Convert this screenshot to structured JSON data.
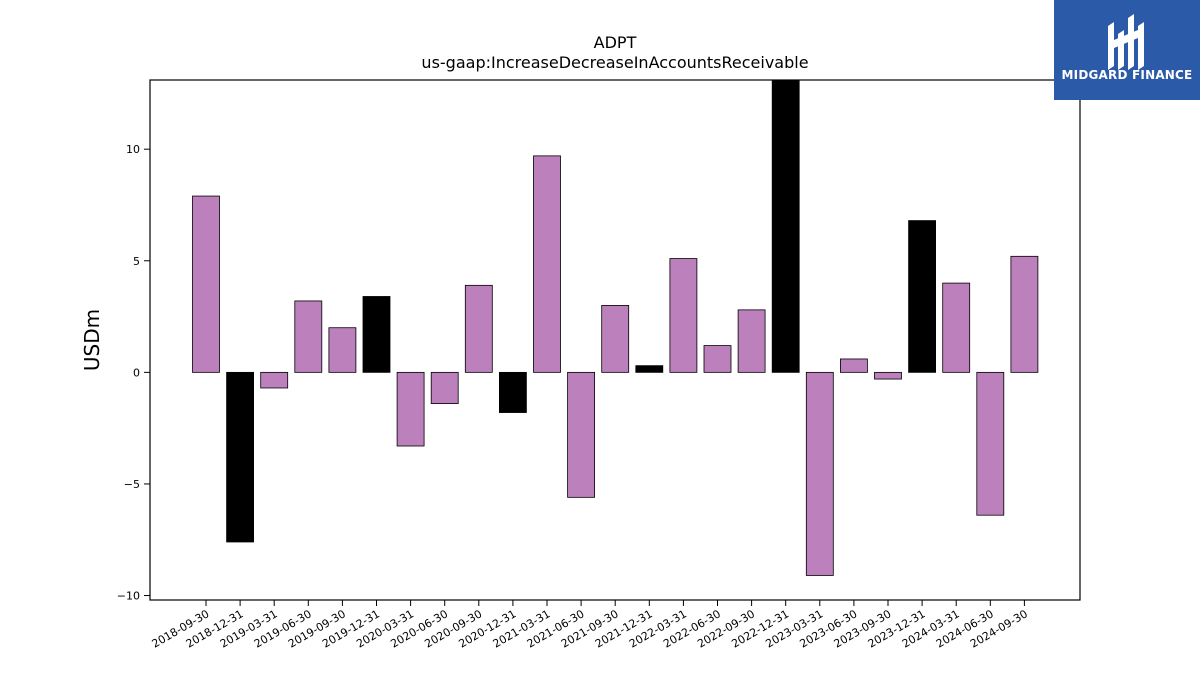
{
  "brand": {
    "name": "MIDGARD FINANCE",
    "bg_color": "#2b5aa8",
    "text_color": "#ffffff"
  },
  "chart_data": {
    "type": "bar",
    "title": "ADPT",
    "subtitle": "us-gaap:IncreaseDecreaseInAccountsReceivable",
    "xlabel": "",
    "ylabel": "USDm",
    "ylim": [
      -10.2,
      13.1
    ],
    "yticks": [
      -10,
      -5,
      0,
      5,
      10
    ],
    "ytick_labels": [
      "−10",
      "−5",
      "0",
      "5",
      "10"
    ],
    "grid": false,
    "categories": [
      "2018-09-30",
      "2018-12-31",
      "2019-03-31",
      "2019-06-30",
      "2019-09-30",
      "2019-12-31",
      "2020-03-31",
      "2020-06-30",
      "2020-09-30",
      "2020-12-31",
      "2021-03-31",
      "2021-06-30",
      "2021-09-30",
      "2021-12-31",
      "2022-03-31",
      "2022-06-30",
      "2022-09-30",
      "2022-12-31",
      "2023-03-31",
      "2023-06-30",
      "2023-09-30",
      "2023-12-31",
      "2024-03-31",
      "2024-06-30",
      "2024-09-30"
    ],
    "values": [
      7.9,
      -7.6,
      -0.7,
      3.2,
      2.0,
      3.4,
      -3.3,
      -1.4,
      3.9,
      -1.8,
      9.7,
      -5.6,
      3.0,
      0.3,
      5.1,
      1.2,
      2.8,
      13.2,
      -9.1,
      0.6,
      -0.3,
      6.8,
      4.0,
      -6.4,
      5.2
    ],
    "highlight": [
      false,
      true,
      false,
      false,
      false,
      true,
      false,
      false,
      false,
      true,
      false,
      false,
      false,
      true,
      false,
      false,
      false,
      true,
      false,
      false,
      false,
      true,
      false,
      false,
      false
    ],
    "colors": {
      "default": "#bc80bd",
      "highlight": "#000000",
      "edge": "#000000"
    }
  }
}
